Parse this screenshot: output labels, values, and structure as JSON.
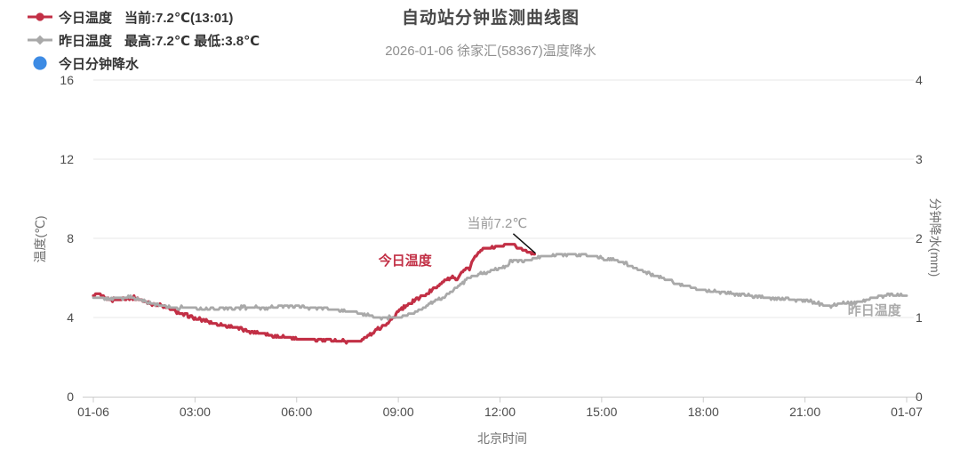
{
  "legend": {
    "items": [
      {
        "label": "今日温度",
        "value": "当前:7.2℃(13:01)",
        "marker": "line-dot-icon",
        "color": "#c22f45"
      },
      {
        "label": "昨日温度",
        "value": "最高:7.2℃ 最低:3.8℃",
        "marker": "line-diamond-icon",
        "color": "#a9a9a9"
      },
      {
        "label": "今日分钟降水",
        "value": "",
        "marker": "circle-icon",
        "color": "#3d8be4"
      }
    ]
  },
  "chart_data": {
    "type": "line",
    "title": "自动站分钟监测曲线图",
    "subtitle": "2026-01-06 徐家汇(58367)温度降水",
    "xlabel": "北京时间",
    "ylabel_left": "温度(℃)",
    "ylabel_right": "分钟降水(mm)",
    "x_ticks": [
      "01-06",
      "03:00",
      "06:00",
      "09:00",
      "12:00",
      "15:00",
      "18:00",
      "21:00",
      "01-07"
    ],
    "x_tick_hours": [
      0,
      3,
      6,
      9,
      12,
      15,
      18,
      21,
      24
    ],
    "ylim_left": [
      0,
      16
    ],
    "yticks_left": [
      0,
      4,
      8,
      12,
      16
    ],
    "ylim_right": [
      0,
      4
    ],
    "yticks_right": [
      0,
      1,
      2,
      3,
      4
    ],
    "grid": true,
    "legend_position": "top-left",
    "series": [
      {
        "name": "今日温度",
        "axis": "left",
        "color": "#c22f45",
        "width": 3.2,
        "points": [
          [
            0,
            5.1
          ],
          [
            0.15,
            5.2
          ],
          [
            0.3,
            5.0
          ],
          [
            0.5,
            4.9
          ],
          [
            0.75,
            4.9
          ],
          [
            1.0,
            5.0
          ],
          [
            1.2,
            5.0
          ],
          [
            1.45,
            4.85
          ],
          [
            1.7,
            4.7
          ],
          [
            2.0,
            4.6
          ],
          [
            2.3,
            4.4
          ],
          [
            2.6,
            4.2
          ],
          [
            3.0,
            3.95
          ],
          [
            3.4,
            3.8
          ],
          [
            3.8,
            3.6
          ],
          [
            4.2,
            3.5
          ],
          [
            4.6,
            3.3
          ],
          [
            5.0,
            3.2
          ],
          [
            5.4,
            3.05
          ],
          [
            5.8,
            3.0
          ],
          [
            6.2,
            2.9
          ],
          [
            6.6,
            2.85
          ],
          [
            7.0,
            2.85
          ],
          [
            7.4,
            2.8
          ],
          [
            7.7,
            2.8
          ],
          [
            7.9,
            2.85
          ],
          [
            8.1,
            3.05
          ],
          [
            8.35,
            3.35
          ],
          [
            8.6,
            3.65
          ],
          [
            8.8,
            3.9
          ],
          [
            9.0,
            4.3
          ],
          [
            9.25,
            4.6
          ],
          [
            9.5,
            4.9
          ],
          [
            9.75,
            5.1
          ],
          [
            10.0,
            5.4
          ],
          [
            10.25,
            5.7
          ],
          [
            10.45,
            5.95
          ],
          [
            10.6,
            6.0
          ],
          [
            10.7,
            5.9
          ],
          [
            10.85,
            6.2
          ],
          [
            11.0,
            6.5
          ],
          [
            11.1,
            6.45
          ],
          [
            11.2,
            6.9
          ],
          [
            11.35,
            7.3
          ],
          [
            11.5,
            7.45
          ],
          [
            11.75,
            7.5
          ],
          [
            12.0,
            7.6
          ],
          [
            12.2,
            7.65
          ],
          [
            12.35,
            7.7
          ],
          [
            12.5,
            7.55
          ],
          [
            12.7,
            7.4
          ],
          [
            12.9,
            7.3
          ],
          [
            13.02,
            7.2
          ]
        ]
      },
      {
        "name": "昨日温度",
        "axis": "left",
        "color": "#a9a9a9",
        "width": 2.8,
        "points": [
          [
            0,
            5.0
          ],
          [
            0.3,
            4.95
          ],
          [
            0.6,
            4.95
          ],
          [
            0.9,
            5.0
          ],
          [
            1.1,
            5.05
          ],
          [
            1.4,
            4.9
          ],
          [
            1.7,
            4.7
          ],
          [
            2.0,
            4.6
          ],
          [
            2.4,
            4.5
          ],
          [
            2.8,
            4.5
          ],
          [
            3.2,
            4.45
          ],
          [
            3.6,
            4.45
          ],
          [
            4.0,
            4.45
          ],
          [
            4.4,
            4.5
          ],
          [
            4.8,
            4.5
          ],
          [
            5.2,
            4.5
          ],
          [
            5.6,
            4.55
          ],
          [
            6.0,
            4.55
          ],
          [
            6.4,
            4.5
          ],
          [
            6.8,
            4.45
          ],
          [
            7.2,
            4.4
          ],
          [
            7.6,
            4.3
          ],
          [
            8.0,
            4.15
          ],
          [
            8.3,
            4.0
          ],
          [
            8.7,
            4.0
          ],
          [
            9.1,
            4.0
          ],
          [
            9.4,
            4.2
          ],
          [
            9.7,
            4.45
          ],
          [
            10.0,
            4.75
          ],
          [
            10.3,
            5.0
          ],
          [
            10.6,
            5.35
          ],
          [
            11.0,
            5.9
          ],
          [
            11.2,
            6.1
          ],
          [
            11.4,
            6.2
          ],
          [
            11.6,
            6.25
          ],
          [
            11.8,
            6.4
          ],
          [
            12.0,
            6.5
          ],
          [
            12.2,
            6.55
          ],
          [
            12.3,
            6.9
          ],
          [
            12.5,
            6.9
          ],
          [
            12.7,
            6.85
          ],
          [
            12.9,
            6.95
          ],
          [
            13.1,
            7.05
          ],
          [
            13.4,
            7.1
          ],
          [
            13.7,
            7.15
          ],
          [
            14.0,
            7.2
          ],
          [
            14.3,
            7.2
          ],
          [
            14.6,
            7.15
          ],
          [
            14.9,
            7.05
          ],
          [
            15.1,
            6.95
          ],
          [
            15.4,
            6.9
          ],
          [
            15.7,
            6.75
          ],
          [
            16.0,
            6.5
          ],
          [
            16.3,
            6.3
          ],
          [
            16.6,
            6.1
          ],
          [
            17.0,
            5.85
          ],
          [
            17.4,
            5.65
          ],
          [
            17.8,
            5.45
          ],
          [
            18.2,
            5.35
          ],
          [
            18.6,
            5.25
          ],
          [
            19.0,
            5.2
          ],
          [
            19.4,
            5.1
          ],
          [
            19.8,
            5.0
          ],
          [
            20.2,
            4.95
          ],
          [
            20.6,
            4.9
          ],
          [
            21.0,
            4.85
          ],
          [
            21.3,
            4.75
          ],
          [
            21.6,
            4.6
          ],
          [
            21.8,
            4.6
          ],
          [
            22.0,
            4.7
          ],
          [
            22.3,
            4.75
          ],
          [
            22.6,
            4.8
          ],
          [
            22.9,
            4.95
          ],
          [
            23.2,
            5.05
          ],
          [
            23.5,
            5.15
          ],
          [
            23.7,
            5.15
          ],
          [
            23.9,
            5.1
          ],
          [
            24.0,
            5.1
          ]
        ]
      },
      {
        "name": "今日分钟降水",
        "axis": "right",
        "color": "#3d8be4",
        "width": 2.5,
        "points": []
      }
    ],
    "annotations": [
      {
        "text": "当前7.2℃",
        "type": "pointer",
        "hour": 13.02,
        "value": 7.2
      },
      {
        "text": "今日温度",
        "type": "series-label",
        "hour": 9.2,
        "value": 6.97,
        "color": "#c22f45"
      },
      {
        "text": "昨日温度",
        "type": "series-label",
        "hour": 23.05,
        "value": 4.43,
        "color": "#ababab"
      }
    ]
  },
  "colors": {
    "grid": "#e7e7e7",
    "axis": "#cccccc",
    "tick_text": "#4c4c4c",
    "pointer_line": "#111111"
  }
}
